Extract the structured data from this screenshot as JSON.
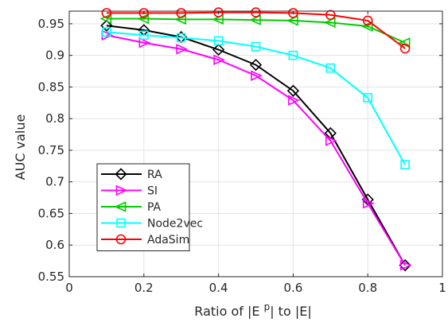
{
  "chart_data": {
    "type": "line",
    "title": "",
    "xlabel_parts": [
      "Ratio of |E ",
      "p",
      "| to |E|"
    ],
    "ylabel": "AUC value",
    "xlim": [
      0,
      1
    ],
    "ylim": [
      0.55,
      0.97
    ],
    "xticks": [
      0,
      0.2,
      0.4,
      0.6,
      0.8,
      1
    ],
    "xtick_labels": [
      "0",
      "0.2",
      "0.4",
      "0.6",
      "0.8",
      "1"
    ],
    "yticks": [
      0.55,
      0.6,
      0.65,
      0.7,
      0.75,
      0.8,
      0.85,
      0.9,
      0.95
    ],
    "ytick_labels": [
      "0.55",
      "0.6",
      "0.65",
      "0.7",
      "0.75",
      "0.8",
      "0.85",
      "0.9",
      "0.95"
    ],
    "grid": true,
    "legend_position": "bottom-left",
    "x": [
      0.1,
      0.2,
      0.3,
      0.4,
      0.5,
      0.6,
      0.7,
      0.8,
      0.9
    ],
    "series": [
      {
        "name": "RA",
        "color": "#000000",
        "marker": "diamond",
        "values": [
          0.947,
          0.94,
          0.929,
          0.909,
          0.885,
          0.844,
          0.777,
          0.672,
          0.568
        ]
      },
      {
        "name": "SI",
        "color": "#ff00ff",
        "marker": "triangle-right",
        "values": [
          0.932,
          0.92,
          0.91,
          0.893,
          0.868,
          0.829,
          0.765,
          0.666,
          0.568
        ]
      },
      {
        "name": "PA",
        "color": "#00cc00",
        "marker": "triangle-left",
        "values": [
          0.958,
          0.958,
          0.957,
          0.957,
          0.956,
          0.955,
          0.952,
          0.946,
          0.92
        ]
      },
      {
        "name": "Node2vec",
        "color": "#00ffff",
        "marker": "square",
        "values": [
          0.937,
          0.932,
          0.928,
          0.923,
          0.914,
          0.9,
          0.88,
          0.833,
          0.727
        ]
      },
      {
        "name": "AdaSim",
        "color": "#ff0000",
        "marker": "circle",
        "values": [
          0.967,
          0.967,
          0.967,
          0.968,
          0.968,
          0.967,
          0.964,
          0.955,
          0.911
        ]
      }
    ]
  }
}
